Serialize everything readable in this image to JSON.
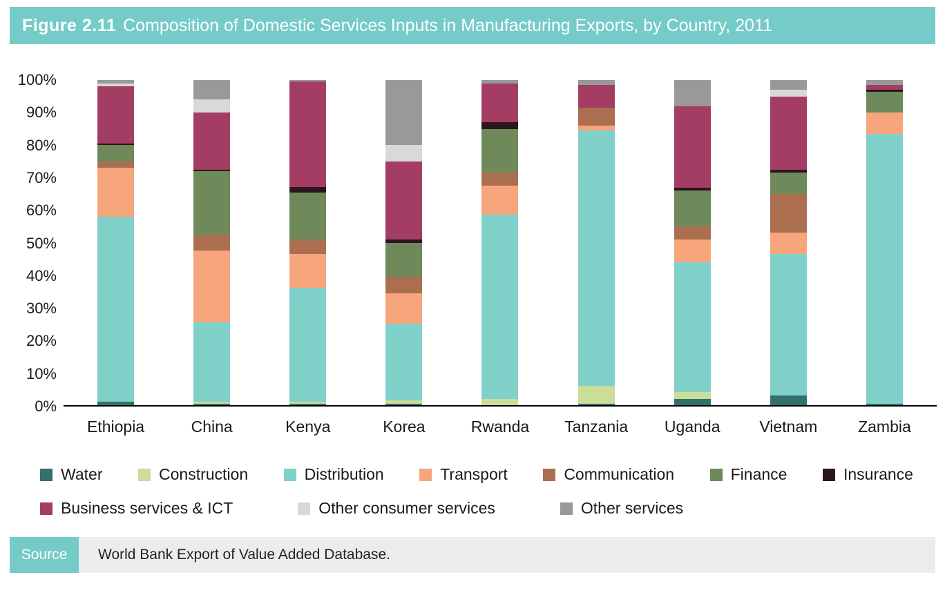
{
  "header": {
    "figure_label": "Figure 2.11",
    "title": "Composition of Domestic Services Inputs in Manufacturing Exports, by Country, 2011"
  },
  "source": {
    "label": "Source",
    "text": "World Bank Export of Value Added Database."
  },
  "colors": {
    "header_bg": "#74cbc7",
    "source_label_bg": "#74cbc7",
    "source_row_bg": "#ececec",
    "axis_line": "#000000"
  },
  "chart_data": {
    "type": "bar",
    "stacked": true,
    "title": "Composition of Domestic Services Inputs in Manufacturing Exports, by Country, 2011",
    "xlabel": "",
    "ylabel": "",
    "ylim": [
      0,
      100
    ],
    "yticks": [
      0,
      10,
      20,
      30,
      40,
      50,
      60,
      70,
      80,
      90,
      100
    ],
    "ytick_suffix": "%",
    "grid": false,
    "legend_position": "bottom",
    "categories": [
      "Ethiopia",
      "China",
      "Kenya",
      "Korea",
      "Rwanda",
      "Tanzania",
      "Uganda",
      "Vietnam",
      "Zambia"
    ],
    "series": [
      {
        "name": "Water",
        "color": "#336f6d",
        "values": [
          1,
          0.5,
          0.5,
          0.5,
          0,
          0.5,
          2,
          3,
          0.5
        ]
      },
      {
        "name": "Construction",
        "color": "#cadd99",
        "values": [
          0,
          0.5,
          0.5,
          1,
          2,
          5.5,
          2,
          0,
          0
        ]
      },
      {
        "name": "Distribution",
        "color": "#80d0ca",
        "values": [
          57,
          24.5,
          35,
          23.5,
          56.5,
          78.5,
          40,
          43.5,
          83
        ]
      },
      {
        "name": "Transport",
        "color": "#f7a67c",
        "values": [
          15,
          22,
          10.5,
          9.5,
          9,
          1.5,
          7,
          6.5,
          6.5
        ]
      },
      {
        "name": "Communication",
        "color": "#ab6f4f",
        "values": [
          2,
          5,
          4.5,
          5,
          4,
          5.5,
          4,
          12,
          0
        ]
      },
      {
        "name": "Finance",
        "color": "#6f8a5a",
        "values": [
          5,
          19.5,
          14.5,
          10.5,
          13.5,
          0,
          11,
          6.5,
          6.5
        ]
      },
      {
        "name": "Insurance",
        "color": "#2a161c",
        "values": [
          0.5,
          0.5,
          1.5,
          1,
          2,
          0,
          1,
          1,
          0.5
        ]
      },
      {
        "name": "Business services & ICT",
        "color": "#a43d63",
        "values": [
          17.5,
          17.5,
          32.5,
          24,
          12,
          7,
          25,
          22.5,
          1.5
        ]
      },
      {
        "name": "Other consumer services",
        "color": "#d9d9d9",
        "values": [
          1,
          4,
          0,
          5,
          0,
          0,
          0,
          2,
          0
        ]
      },
      {
        "name": "Other services",
        "color": "#999999",
        "values": [
          1,
          6,
          0.5,
          20,
          1,
          1.5,
          8,
          3,
          1.5
        ]
      }
    ]
  },
  "legend": {
    "rows": [
      [
        "Water",
        "Construction",
        "Distribution",
        "Transport",
        "Communication",
        "Finance",
        "Insurance"
      ],
      [
        "Business services & ICT",
        "Other consumer services",
        "Other services"
      ]
    ]
  }
}
